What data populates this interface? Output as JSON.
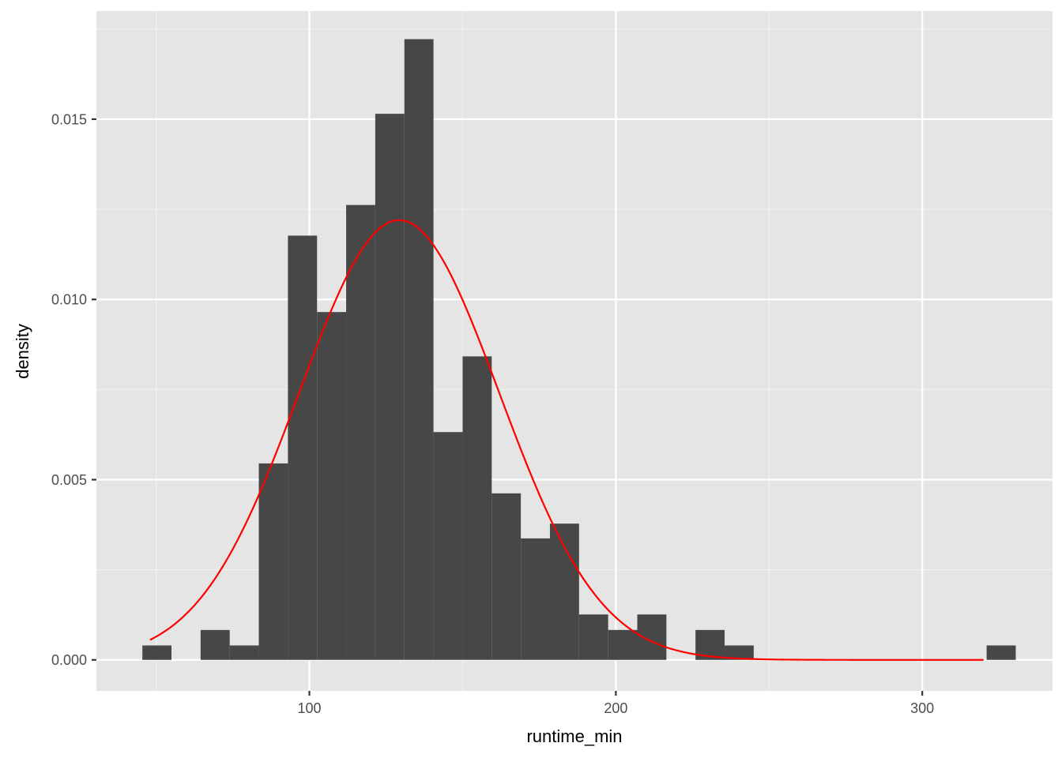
{
  "chart_data": {
    "type": "histogram",
    "xlabel": "runtime_min",
    "ylabel": "density",
    "xlim": [
      30.5,
      342.5
    ],
    "ylim": [
      -0.00086,
      0.018
    ],
    "x_ticks": [
      100,
      200,
      300
    ],
    "x_minor_ticks": [
      50,
      150,
      250
    ],
    "y_ticks": [
      0.0,
      0.005,
      0.01,
      0.015
    ],
    "y_minor_ticks": [
      0.0025,
      0.0075,
      0.0125,
      0.0175
    ],
    "y_tick_labels": [
      "0.000",
      "0.005",
      "0.010",
      "0.015"
    ],
    "x_tick_labels": [
      "100",
      "200",
      "300"
    ],
    "bin_width": 9.5,
    "series": [
      {
        "type": "bar",
        "color": "#474747",
        "bins": [
          {
            "x_start": 45.5,
            "x_end": 55.0,
            "density": 0.0004
          },
          {
            "x_start": 55.0,
            "x_end": 64.5,
            "density": 0.0
          },
          {
            "x_start": 64.5,
            "x_end": 74.0,
            "density": 0.00083
          },
          {
            "x_start": 74.0,
            "x_end": 83.5,
            "density": 0.0004
          },
          {
            "x_start": 83.5,
            "x_end": 93.0,
            "density": 0.00545
          },
          {
            "x_start": 93.0,
            "x_end": 102.5,
            "density": 0.01177
          },
          {
            "x_start": 102.5,
            "x_end": 112.0,
            "density": 0.00965
          },
          {
            "x_start": 112.0,
            "x_end": 121.5,
            "density": 0.01262
          },
          {
            "x_start": 121.5,
            "x_end": 131.0,
            "density": 0.01515
          },
          {
            "x_start": 131.0,
            "x_end": 140.5,
            "density": 0.01722
          },
          {
            "x_start": 140.5,
            "x_end": 150.0,
            "density": 0.00632
          },
          {
            "x_start": 150.0,
            "x_end": 159.5,
            "density": 0.00842
          },
          {
            "x_start": 159.5,
            "x_end": 169.0,
            "density": 0.00462
          },
          {
            "x_start": 169.0,
            "x_end": 178.5,
            "density": 0.00337
          },
          {
            "x_start": 178.5,
            "x_end": 188.0,
            "density": 0.00378
          },
          {
            "x_start": 188.0,
            "x_end": 197.5,
            "density": 0.00126
          },
          {
            "x_start": 197.5,
            "x_end": 207.0,
            "density": 0.00083
          },
          {
            "x_start": 207.0,
            "x_end": 216.5,
            "density": 0.00126
          },
          {
            "x_start": 216.5,
            "x_end": 226.0,
            "density": 0.0
          },
          {
            "x_start": 226.0,
            "x_end": 235.5,
            "density": 0.00083
          },
          {
            "x_start": 235.5,
            "x_end": 245.0,
            "density": 0.0004
          },
          {
            "x_start": 321.0,
            "x_end": 330.5,
            "density": 0.0004
          }
        ]
      },
      {
        "type": "line",
        "color": "#ff0000",
        "description_curve": "normal density",
        "mean": 129.3,
        "sd": 32.7,
        "x_range": [
          48,
          320
        ]
      }
    ]
  }
}
